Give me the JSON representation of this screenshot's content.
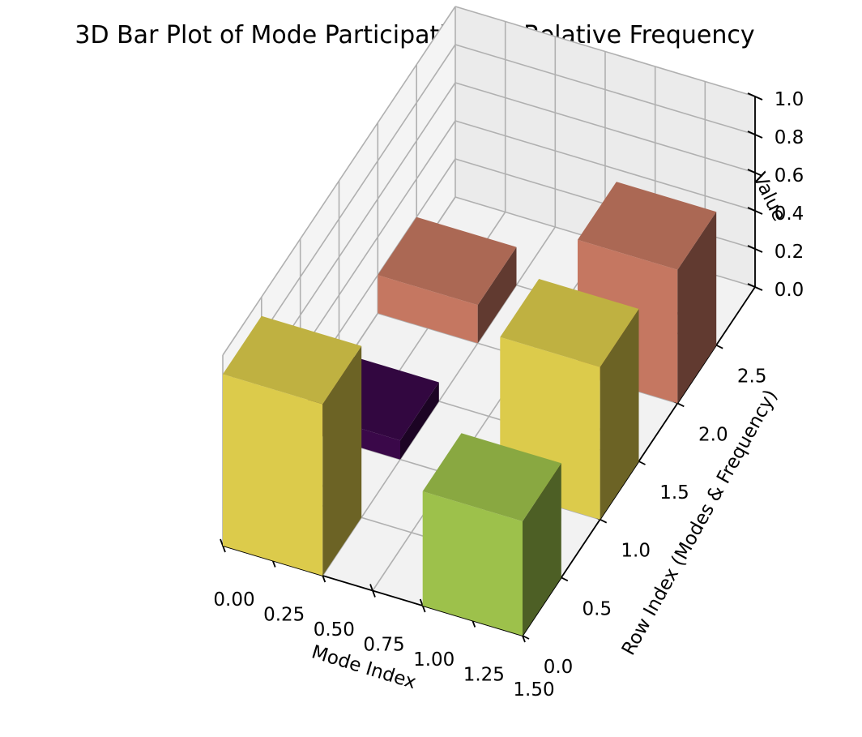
{
  "chart_data": {
    "type": "bar3d",
    "title": "3D Bar Plot of Mode Participations & Relative Frequency",
    "xlabel": "Mode Index",
    "ylabel": "Row Index (Modes & Frequency)",
    "zlabel": "Value",
    "x_ticks": [
      "0.00",
      "0.25",
      "0.50",
      "0.75",
      "1.00",
      "1.25",
      "1.50"
    ],
    "y_ticks": [
      "0.0",
      "0.5",
      "1.0",
      "1.5",
      "2.0",
      "2.5"
    ],
    "z_ticks": [
      "0.0",
      "0.2",
      "0.4",
      "0.6",
      "0.8",
      "1.0"
    ],
    "xlim": [
      0,
      1.5
    ],
    "ylim": [
      0,
      3
    ],
    "zlim": [
      0,
      1
    ],
    "bar_size": {
      "dx": 0.5,
      "dy": 0.5
    },
    "bars": [
      {
        "x": 0,
        "y": 0,
        "value": 0.9,
        "color": "#dccb4b"
      },
      {
        "x": 1,
        "y": 0,
        "value": 0.6,
        "color": "#9dc14b"
      },
      {
        "x": 0,
        "y": 1,
        "value": 0.1,
        "color": "#3a0849"
      },
      {
        "x": 1,
        "y": 1,
        "value": 0.8,
        "color": "#dccb4b"
      },
      {
        "x": 0,
        "y": 2,
        "value": 0.2,
        "color": "#c57761"
      },
      {
        "x": 1,
        "y": 2,
        "value": 0.7,
        "color": "#c57761"
      }
    ],
    "grid": true
  }
}
